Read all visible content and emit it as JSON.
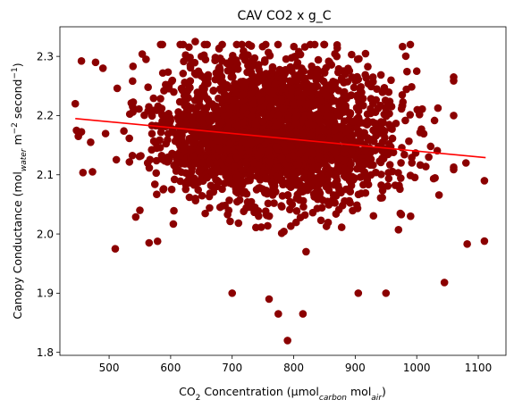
{
  "chart_data": {
    "type": "scatter",
    "title": "CAV CO2 x g_C",
    "xlabel": {
      "prefix": "CO",
      "sub1": "2",
      "mid": " Concentration (µmol",
      "sub2": "carbon",
      "mid2": " mol",
      "sub3": "air",
      "suffix": ")"
    },
    "ylabel": {
      "prefix": "Canopy Conductance (mol",
      "sub1": "water",
      "mid": " m",
      "sup1": "−2",
      "mid2": " second",
      "sup2": "−1",
      "suffix": ")"
    },
    "xlim": [
      420,
      1145
    ],
    "ylim": [
      1.795,
      2.35
    ],
    "xticks": [
      500,
      600,
      700,
      800,
      900,
      1000,
      1100
    ],
    "yticks": [
      1.8,
      1.9,
      2.0,
      2.1,
      2.2,
      2.3
    ],
    "ytick_labels": [
      "1.8",
      "1.9",
      "2.0",
      "2.1",
      "2.2",
      "2.3"
    ],
    "grid": false,
    "colors": {
      "points": "#8b0000",
      "trend": "#ff0000"
    },
    "trend_line": {
      "x": [
        445,
        1112
      ],
      "y": [
        2.195,
        2.129
      ]
    },
    "cloud": {
      "center_x": 770,
      "center_y": 2.17,
      "sd_x": 95,
      "sd_y": 0.06,
      "count": 2600
    },
    "outliers": [
      {
        "x": 445,
        "y": 2.22
      },
      {
        "x": 447,
        "y": 2.175
      },
      {
        "x": 450,
        "y": 2.165
      },
      {
        "x": 470,
        "y": 2.155
      },
      {
        "x": 473,
        "y": 2.105
      },
      {
        "x": 478,
        "y": 2.29
      },
      {
        "x": 490,
        "y": 2.28
      },
      {
        "x": 510,
        "y": 1.975
      },
      {
        "x": 550,
        "y": 2.04
      },
      {
        "x": 565,
        "y": 1.985
      },
      {
        "x": 590,
        "y": 2.2
      },
      {
        "x": 640,
        "y": 2.325
      },
      {
        "x": 700,
        "y": 1.9
      },
      {
        "x": 760,
        "y": 1.89
      },
      {
        "x": 775,
        "y": 1.865
      },
      {
        "x": 790,
        "y": 1.82
      },
      {
        "x": 815,
        "y": 1.865
      },
      {
        "x": 905,
        "y": 1.9
      },
      {
        "x": 950,
        "y": 1.9
      },
      {
        "x": 1045,
        "y": 1.918
      },
      {
        "x": 1060,
        "y": 2.265
      },
      {
        "x": 1080,
        "y": 2.12
      },
      {
        "x": 1082,
        "y": 1.983
      },
      {
        "x": 1110,
        "y": 2.09
      },
      {
        "x": 1110,
        "y": 1.988
      },
      {
        "x": 1000,
        "y": 2.275
      },
      {
        "x": 560,
        "y": 2.295
      },
      {
        "x": 650,
        "y": 2.3
      },
      {
        "x": 870,
        "y": 2.3
      },
      {
        "x": 990,
        "y": 2.03
      }
    ]
  }
}
